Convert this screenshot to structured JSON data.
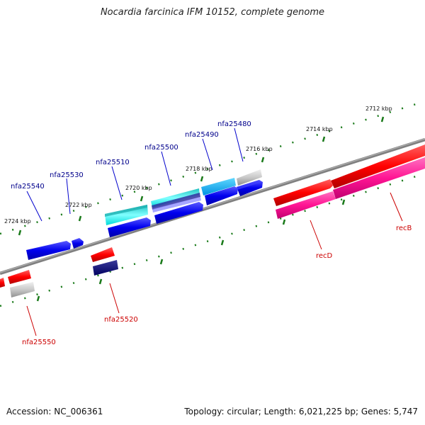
{
  "title": "Nocardia farcinica IFM 10152, complete genome",
  "footer": {
    "accession": "Accession: NC_006361",
    "summary": "Topology: circular; Length: 6,021,225 bp; Genes: 5,747"
  },
  "ticks": [
    "2712 kbp",
    "2714 kbp",
    "2716 kbp",
    "2718 kbp",
    "2720 kbp",
    "2722 kbp",
    "2724 kbp"
  ],
  "genes_top": [
    "nfa25480",
    "nfa25490",
    "nfa25500",
    "nfa25510",
    "nfa25530",
    "nfa25540"
  ],
  "genes_bottom": [
    "recB",
    "recD",
    "nfa25520",
    "nfa25550"
  ],
  "colors": {
    "forward_label": "#00008b",
    "reverse_label": "#cc0000",
    "tick": "#1a7a1a",
    "axis": "#808080"
  }
}
